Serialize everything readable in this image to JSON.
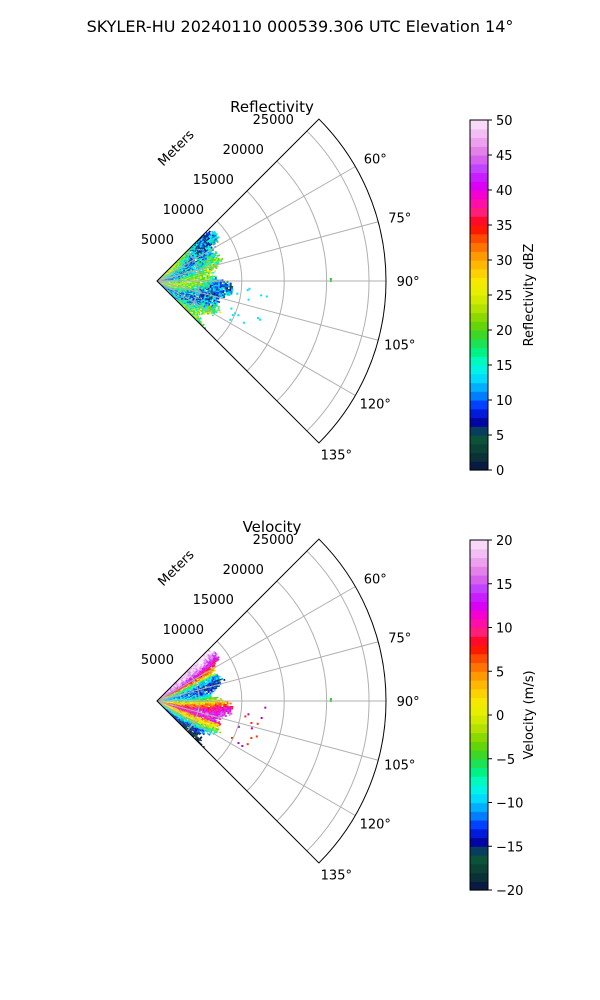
{
  "figure_title": "SKYLER-HU  20240110  000539.306 UTC Elevation 14°",
  "chart_data": [
    {
      "type": "heatmap",
      "projection": "polar-sector",
      "title": "Reflectivity",
      "radial_label": "Meters",
      "radial_ticks": [
        5000,
        10000,
        15000,
        20000,
        25000
      ],
      "radial_tick_labels": [
        "5000",
        "10000",
        "15000",
        "20000",
        "25000"
      ],
      "r_range": [
        0,
        27000
      ],
      "theta_range_deg": [
        45,
        135
      ],
      "theta_ticks_deg": [
        60,
        75,
        90,
        105,
        120,
        135
      ],
      "theta_tick_labels": [
        "60°",
        "75°",
        "90°",
        "105°",
        "120°",
        "135°"
      ],
      "data_extent_m": 9000,
      "grid": true,
      "colorbar": {
        "label": "Reflectivity dBZ",
        "range": [
          0,
          50
        ],
        "ticks": [
          0,
          5,
          10,
          15,
          20,
          25,
          30,
          35,
          40,
          45,
          50
        ],
        "tick_labels": [
          "0",
          "5",
          "10",
          "15",
          "20",
          "25",
          "30",
          "35",
          "40",
          "45",
          "50"
        ],
        "levels": 40,
        "stops": [
          [
            0,
            "#0a1045"
          ],
          [
            0.05,
            "#0a3a34"
          ],
          [
            0.1,
            "#0a5a3a"
          ],
          [
            0.14,
            "#0000aa"
          ],
          [
            0.18,
            "#0030ff"
          ],
          [
            0.22,
            "#0090ff"
          ],
          [
            0.26,
            "#00d8ff"
          ],
          [
            0.3,
            "#00ffd8"
          ],
          [
            0.34,
            "#00f080"
          ],
          [
            0.38,
            "#30d830"
          ],
          [
            0.42,
            "#70d400"
          ],
          [
            0.46,
            "#b0e000"
          ],
          [
            0.5,
            "#e0f000"
          ],
          [
            0.54,
            "#f8e800"
          ],
          [
            0.58,
            "#ffc000"
          ],
          [
            0.62,
            "#ff9000"
          ],
          [
            0.66,
            "#ff5000"
          ],
          [
            0.7,
            "#ff0000"
          ],
          [
            0.74,
            "#ff2080"
          ],
          [
            0.78,
            "#ff00c8"
          ],
          [
            0.82,
            "#d000ff"
          ],
          [
            0.86,
            "#c040ff"
          ],
          [
            0.9,
            "#e070e8"
          ],
          [
            0.95,
            "#f0b0f0"
          ],
          [
            1,
            "#fae8fa"
          ]
        ]
      }
    },
    {
      "type": "heatmap",
      "projection": "polar-sector",
      "title": "Velocity",
      "radial_label": "Meters",
      "radial_ticks": [
        5000,
        10000,
        15000,
        20000,
        25000
      ],
      "radial_tick_labels": [
        "5000",
        "10000",
        "15000",
        "20000",
        "25000"
      ],
      "r_range": [
        0,
        27000
      ],
      "theta_range_deg": [
        45,
        135
      ],
      "theta_ticks_deg": [
        60,
        75,
        90,
        105,
        120,
        135
      ],
      "theta_tick_labels": [
        "60°",
        "75°",
        "90°",
        "105°",
        "120°",
        "135°"
      ],
      "data_extent_m": 9000,
      "grid": true,
      "colorbar": {
        "label": "Velocity (m/s)",
        "range": [
          -20,
          20
        ],
        "ticks": [
          -20,
          -15,
          -10,
          -5,
          0,
          5,
          10,
          15,
          20
        ],
        "tick_labels": [
          "−20",
          "−15",
          "−10",
          "−5",
          "0",
          "5",
          "10",
          "15",
          "20"
        ],
        "levels": 40,
        "stops": [
          [
            0,
            "#0a1045"
          ],
          [
            0.05,
            "#0a3a34"
          ],
          [
            0.1,
            "#0a5a3a"
          ],
          [
            0.14,
            "#0000aa"
          ],
          [
            0.18,
            "#0030ff"
          ],
          [
            0.22,
            "#0090ff"
          ],
          [
            0.26,
            "#00d8ff"
          ],
          [
            0.3,
            "#00ffd8"
          ],
          [
            0.34,
            "#00f080"
          ],
          [
            0.38,
            "#30d830"
          ],
          [
            0.42,
            "#70d400"
          ],
          [
            0.46,
            "#b0e000"
          ],
          [
            0.5,
            "#e0f000"
          ],
          [
            0.54,
            "#f8e800"
          ],
          [
            0.58,
            "#ffc000"
          ],
          [
            0.62,
            "#ff9000"
          ],
          [
            0.66,
            "#ff5000"
          ],
          [
            0.7,
            "#ff0000"
          ],
          [
            0.74,
            "#ff2080"
          ],
          [
            0.78,
            "#ff00c8"
          ],
          [
            0.82,
            "#d000ff"
          ],
          [
            0.86,
            "#c040ff"
          ],
          [
            0.9,
            "#e070e8"
          ],
          [
            0.95,
            "#f0b0f0"
          ],
          [
            1,
            "#fae8fa"
          ]
        ]
      }
    }
  ]
}
